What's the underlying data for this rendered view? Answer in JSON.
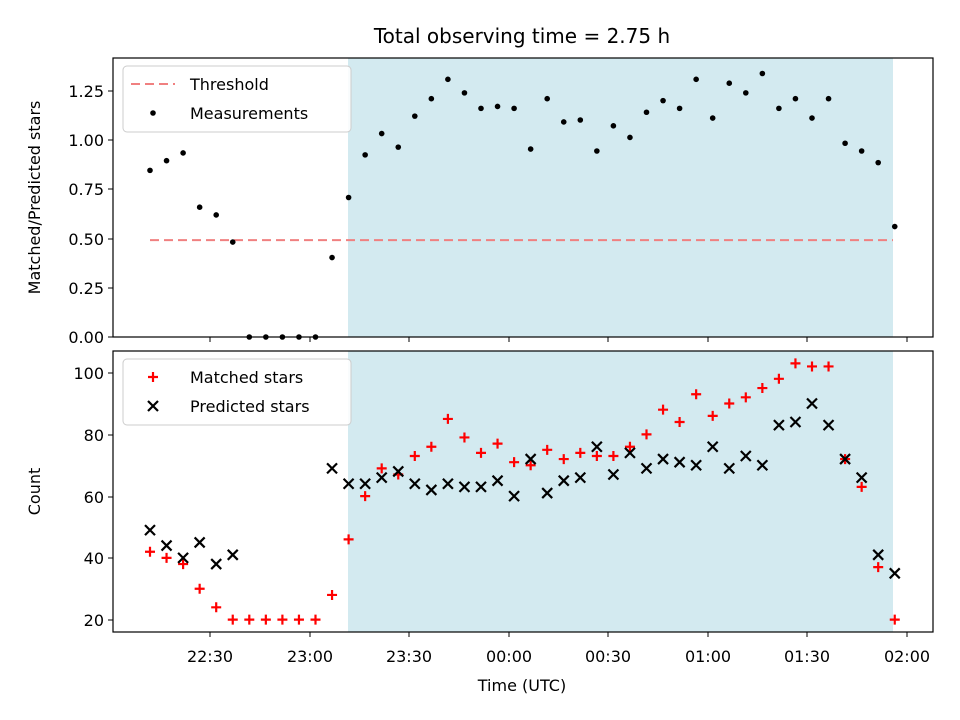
{
  "chart_data": {
    "title": "Total observing time = 2.75 h",
    "shade_color": "#d3eaf0",
    "threshold_color": "#f08080",
    "x_tick_labels": [
      "22:30",
      "23:00",
      "23:30",
      "00:00",
      "00:30",
      "01:00",
      "01:30",
      "02:00"
    ],
    "xlabel": "Time (UTC)",
    "panels": [
      {
        "type": "scatter",
        "ylabel": "Matched/Predicted stars",
        "ylim": [
          0,
          1.44
        ],
        "yticks": [
          "0.00",
          "0.25",
          "0.50",
          "0.75",
          "1.00",
          "1.25"
        ],
        "legend": {
          "position": "upper-left",
          "entries": [
            "Threshold",
            "Measurements"
          ]
        },
        "threshold": {
          "name": "Threshold",
          "value": 0.5
        },
        "series": [
          {
            "name": "Measurements",
            "color": "#000000",
            "marker": "dot",
            "values": [
              0.86,
              0.91,
              0.95,
              0.67,
              0.63,
              0.49,
              0.0,
              0.0,
              0.0,
              0.0,
              0.0,
              0.41,
              0.72,
              0.94,
              1.05,
              0.98,
              1.14,
              1.23,
              1.33,
              1.26,
              1.18,
              1.19,
              1.18,
              0.97,
              1.23,
              1.11,
              1.12,
              0.96,
              1.09,
              1.03,
              1.16,
              1.22,
              1.18,
              1.33,
              1.13,
              1.31,
              1.26,
              1.36,
              1.18,
              1.23,
              1.13,
              1.23,
              1.0,
              0.96,
              0.9,
              0.57
            ]
          }
        ]
      },
      {
        "type": "scatter",
        "ylabel": "Count",
        "ylim": [
          16,
          107
        ],
        "yticks": [
          "20",
          "40",
          "60",
          "80",
          "100"
        ],
        "legend": {
          "position": "upper-left",
          "entries": [
            "Matched stars",
            "Predicted stars"
          ]
        },
        "series": [
          {
            "name": "Matched stars",
            "color": "#ff0000",
            "marker": "plus",
            "values": [
              42,
              40,
              38,
              30,
              24,
              20,
              20,
              20,
              20,
              20,
              20,
              28,
              46,
              60,
              69,
              67,
              73,
              76,
              85,
              79,
              74,
              77,
              71,
              70,
              75,
              72,
              74,
              73,
              73,
              76,
              80,
              88,
              84,
              93,
              86,
              90,
              92,
              95,
              98,
              103,
              102,
              102,
              72,
              63,
              37,
              20
            ]
          },
          {
            "name": "Predicted stars",
            "color": "#000000",
            "marker": "x",
            "values": [
              49,
              44,
              40,
              45,
              38,
              41,
              null,
              null,
              null,
              null,
              null,
              69,
              64,
              64,
              66,
              68,
              64,
              62,
              64,
              63,
              63,
              65,
              60,
              72,
              61,
              65,
              66,
              76,
              67,
              74,
              69,
              72,
              71,
              70,
              76,
              69,
              73,
              70,
              83,
              84,
              90,
              83,
              72,
              66,
              41,
              35
            ]
          }
        ]
      }
    ]
  }
}
